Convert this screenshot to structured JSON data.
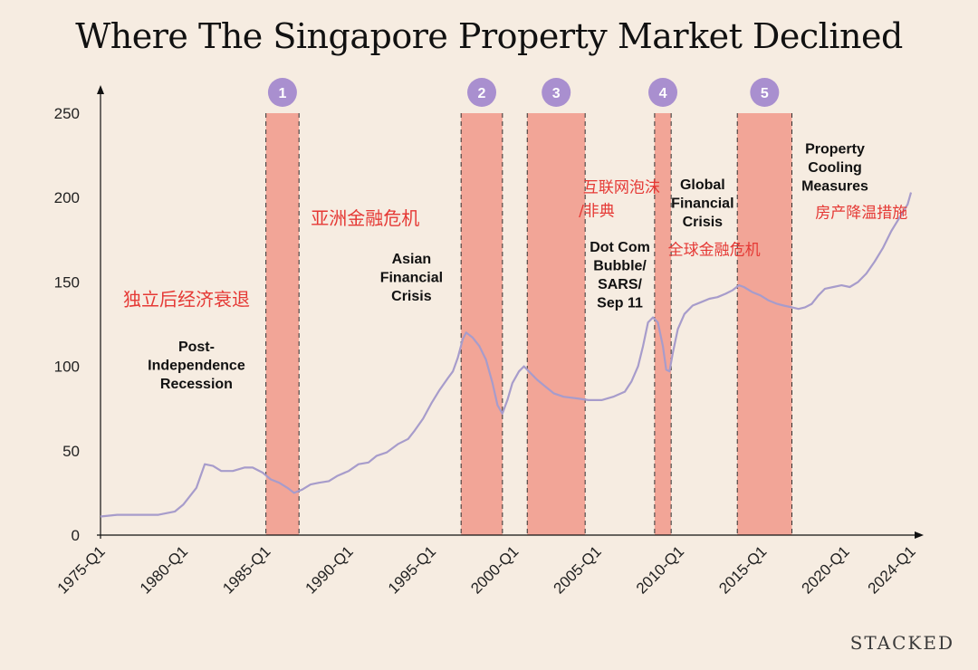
{
  "title": "Where The Singapore Property Market Declined",
  "brand": "STACKED",
  "chart_data": {
    "type": "line",
    "ylim": [
      0,
      250
    ],
    "yticks": [
      0,
      50,
      100,
      150,
      200,
      250
    ],
    "x_ticks": [
      "1975-Q1",
      "1980-Q1",
      "1985-Q1",
      "1990-Q1",
      "1995-Q1",
      "2000-Q1",
      "2005-Q1",
      "2010-Q1",
      "2015-Q1",
      "2020-Q1",
      "2024-Q1"
    ],
    "xlim": [
      1975.0,
      2024.0
    ],
    "colors": {
      "line": "#a79ccb",
      "band": "#f2a597",
      "badge": "#a98fcf",
      "zh": "#e53935"
    },
    "series": [
      {
        "points": [
          [
            1975.0,
            11
          ],
          [
            1976.0,
            12
          ],
          [
            1978.5,
            12
          ],
          [
            1979.5,
            14
          ],
          [
            1980.0,
            18
          ],
          [
            1980.8,
            28
          ],
          [
            1981.3,
            42
          ],
          [
            1981.8,
            41
          ],
          [
            1982.3,
            38
          ],
          [
            1983.0,
            38
          ],
          [
            1983.7,
            40
          ],
          [
            1984.2,
            40
          ],
          [
            1984.8,
            37
          ],
          [
            1985.3,
            33
          ],
          [
            1985.8,
            31
          ],
          [
            1986.3,
            28
          ],
          [
            1986.7,
            25
          ],
          [
            1987.2,
            27
          ],
          [
            1987.7,
            30
          ],
          [
            1988.2,
            31
          ],
          [
            1988.8,
            32
          ],
          [
            1989.3,
            35
          ],
          [
            1990.0,
            38
          ],
          [
            1990.6,
            42
          ],
          [
            1991.2,
            43
          ],
          [
            1991.7,
            47
          ],
          [
            1992.3,
            49
          ],
          [
            1993.0,
            54
          ],
          [
            1993.6,
            57
          ],
          [
            1994.0,
            62
          ],
          [
            1994.5,
            69
          ],
          [
            1995.0,
            78
          ],
          [
            1995.5,
            86
          ],
          [
            1996.0,
            93
          ],
          [
            1996.3,
            97
          ],
          [
            1996.6,
            105
          ],
          [
            1996.9,
            116
          ],
          [
            1997.1,
            120
          ],
          [
            1997.5,
            117
          ],
          [
            1997.9,
            112
          ],
          [
            1998.3,
            104
          ],
          [
            1998.7,
            90
          ],
          [
            1999.0,
            77
          ],
          [
            1999.3,
            72
          ],
          [
            1999.6,
            80
          ],
          [
            1999.9,
            90
          ],
          [
            2000.3,
            97
          ],
          [
            2000.6,
            100
          ],
          [
            2001.0,
            96
          ],
          [
            2001.4,
            92
          ],
          [
            2001.9,
            88
          ],
          [
            2002.4,
            84
          ],
          [
            2003.0,
            82
          ],
          [
            2003.8,
            81
          ],
          [
            2004.5,
            80
          ],
          [
            2005.3,
            80
          ],
          [
            2006.0,
            82
          ],
          [
            2006.7,
            85
          ],
          [
            2007.1,
            91
          ],
          [
            2007.5,
            100
          ],
          [
            2007.8,
            112
          ],
          [
            2008.1,
            126
          ],
          [
            2008.4,
            129
          ],
          [
            2008.7,
            126
          ],
          [
            2009.0,
            112
          ],
          [
            2009.2,
            98
          ],
          [
            2009.4,
            97
          ],
          [
            2009.6,
            108
          ],
          [
            2009.9,
            122
          ],
          [
            2010.3,
            131
          ],
          [
            2010.8,
            136
          ],
          [
            2011.3,
            138
          ],
          [
            2011.8,
            140
          ],
          [
            2012.3,
            141
          ],
          [
            2012.8,
            143
          ],
          [
            2013.2,
            145
          ],
          [
            2013.6,
            148
          ],
          [
            2013.9,
            147
          ],
          [
            2014.4,
            144
          ],
          [
            2014.9,
            142
          ],
          [
            2015.4,
            139
          ],
          [
            2015.9,
            137
          ],
          [
            2016.3,
            136
          ],
          [
            2016.8,
            135
          ],
          [
            2017.2,
            134
          ],
          [
            2017.6,
            135
          ],
          [
            2018.0,
            137
          ],
          [
            2018.4,
            142
          ],
          [
            2018.8,
            146
          ],
          [
            2019.3,
            147
          ],
          [
            2019.8,
            148
          ],
          [
            2020.3,
            147
          ],
          [
            2020.8,
            150
          ],
          [
            2021.3,
            155
          ],
          [
            2021.8,
            162
          ],
          [
            2022.3,
            170
          ],
          [
            2022.8,
            180
          ],
          [
            2023.3,
            188
          ],
          [
            2023.8,
            196
          ],
          [
            2024.0,
            203
          ]
        ]
      }
    ],
    "bands": [
      {
        "id": "1",
        "start": 1985.0,
        "end": 1987.0
      },
      {
        "id": "2",
        "start": 1996.8,
        "end": 1999.3
      },
      {
        "id": "3",
        "start": 2000.8,
        "end": 2004.3
      },
      {
        "id": "4",
        "start": 2008.5,
        "end": 2009.5
      },
      {
        "id": "5",
        "start": 2013.5,
        "end": 2016.8
      }
    ],
    "annotations": [
      {
        "text": "独立后经济衰退",
        "lang": "zh",
        "big": true,
        "x": 1980.2,
        "y": 136
      },
      {
        "text": "Post-",
        "lang": "en",
        "x": 1980.8,
        "y": 109
      },
      {
        "text": "Independence",
        "lang": "en",
        "x": 1980.8,
        "y": 98
      },
      {
        "text": "Recession",
        "lang": "en",
        "x": 1980.8,
        "y": 87
      },
      {
        "text": "亚洲金融危机",
        "lang": "zh",
        "big": true,
        "x": 1991.0,
        "y": 184
      },
      {
        "text": "Asian",
        "lang": "en",
        "x": 1993.8,
        "y": 161
      },
      {
        "text": "Financial",
        "lang": "en",
        "x": 1993.8,
        "y": 150
      },
      {
        "text": "Crisis",
        "lang": "en",
        "x": 1993.8,
        "y": 139
      },
      {
        "text": "互联网泡沫",
        "lang": "zh",
        "x": 2006.5,
        "y": 203
      },
      {
        "text": "/非典",
        "lang": "zh",
        "x": 2005.0,
        "y": 189
      },
      {
        "text": "Dot Com",
        "lang": "en",
        "x": 2006.4,
        "y": 168
      },
      {
        "text": "Bubble/",
        "lang": "en",
        "x": 2006.4,
        "y": 157
      },
      {
        "text": "SARS/",
        "lang": "en",
        "x": 2006.4,
        "y": 146
      },
      {
        "text": "Sep 11",
        "lang": "en",
        "x": 2006.4,
        "y": 135
      },
      {
        "text": "Global",
        "lang": "en",
        "x": 2011.4,
        "y": 205
      },
      {
        "text": "Financial",
        "lang": "en",
        "x": 2011.4,
        "y": 194
      },
      {
        "text": "Crisis",
        "lang": "en",
        "x": 2011.4,
        "y": 183
      },
      {
        "text": "全球金融危机",
        "lang": "zh",
        "x": 2012.1,
        "y": 166
      },
      {
        "text": "Property",
        "lang": "en",
        "x": 2019.4,
        "y": 226
      },
      {
        "text": "Cooling",
        "lang": "en",
        "x": 2019.4,
        "y": 215
      },
      {
        "text": "Measures",
        "lang": "en",
        "x": 2019.4,
        "y": 204
      },
      {
        "text": "房产降温措施",
        "lang": "zh",
        "x": 2021.0,
        "y": 188
      }
    ]
  }
}
